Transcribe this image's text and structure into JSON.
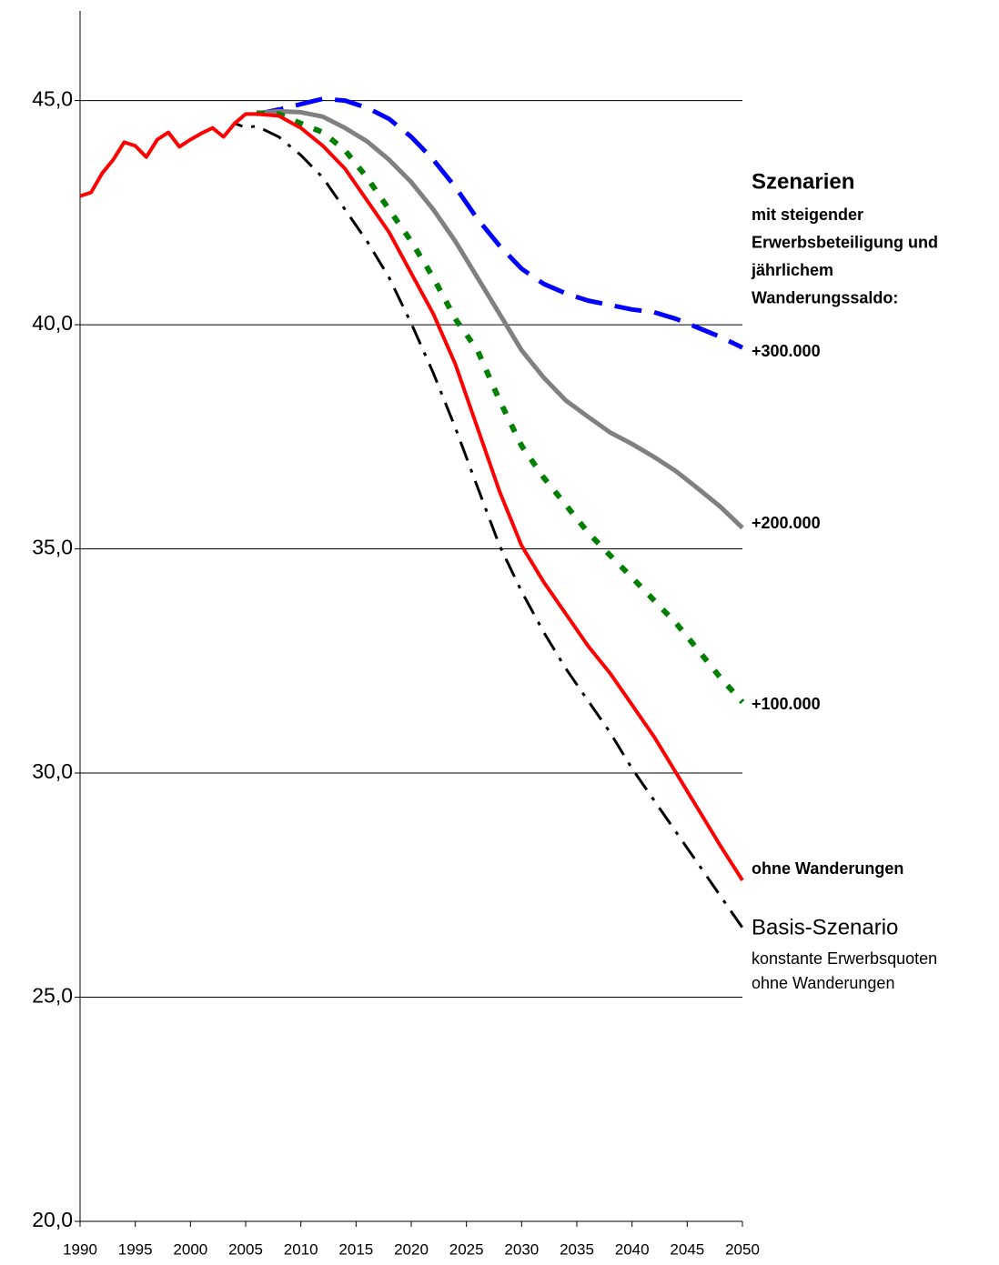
{
  "chart_data": {
    "type": "line",
    "x": [
      1990,
      1991,
      1992,
      1993,
      1994,
      1995,
      1996,
      1997,
      1998,
      1999,
      2000,
      2001,
      2002,
      2003,
      2004,
      2005,
      2006,
      2008,
      2010,
      2012,
      2014,
      2016,
      2018,
      2020,
      2022,
      2024,
      2026,
      2028,
      2030,
      2032,
      2034,
      2036,
      2038,
      2040,
      2042,
      2044,
      2046,
      2048,
      2050
    ],
    "xlim": [
      1990,
      2050
    ],
    "xticks": [
      1990,
      1995,
      2000,
      2005,
      2010,
      2015,
      2020,
      2025,
      2030,
      2035,
      2040,
      2045,
      2050
    ],
    "ylim": [
      20,
      47
    ],
    "yticks": [
      {
        "value": 20,
        "label": "20,0"
      },
      {
        "value": 25,
        "label": "25,0"
      },
      {
        "value": 30,
        "label": "30,0"
      },
      {
        "value": 35,
        "label": "35,0"
      },
      {
        "value": 40,
        "label": "40,0"
      },
      {
        "value": 45,
        "label": "45,0"
      }
    ],
    "grid": true,
    "annotation_title": "Szenarien",
    "annotations": [
      "mit steigender",
      "Erwerbsbeteiligung und",
      "jährlichem",
      "Wanderungssaldo:"
    ],
    "series": [
      {
        "name": "+300.000",
        "color": "#0000ff",
        "style": "dashed",
        "values": [
          null,
          null,
          null,
          null,
          null,
          null,
          null,
          null,
          null,
          null,
          null,
          null,
          null,
          null,
          null,
          null,
          44.7,
          44.8,
          44.92,
          45.04,
          45.0,
          44.84,
          44.59,
          44.19,
          43.68,
          43.07,
          42.36,
          41.76,
          41.25,
          40.91,
          40.7,
          40.54,
          40.44,
          40.34,
          40.28,
          40.13,
          39.93,
          39.73,
          39.49
        ]
      },
      {
        "name": "+200.000",
        "color": "#808080",
        "style": "solid",
        "values": [
          null,
          null,
          null,
          null,
          null,
          null,
          null,
          null,
          null,
          null,
          null,
          null,
          null,
          null,
          null,
          null,
          44.72,
          44.76,
          44.74,
          44.64,
          44.39,
          44.09,
          43.68,
          43.18,
          42.57,
          41.86,
          41.05,
          40.24,
          39.43,
          38.82,
          38.31,
          37.95,
          37.6,
          37.34,
          37.05,
          36.73,
          36.34,
          35.94,
          35.47
        ]
      },
      {
        "name": "+100.000",
        "color": "#008000",
        "style": "dotted",
        "values": [
          null,
          null,
          null,
          null,
          null,
          null,
          null,
          null,
          null,
          null,
          null,
          null,
          null,
          null,
          null,
          null,
          44.72,
          44.7,
          44.49,
          44.29,
          43.89,
          43.28,
          42.57,
          41.86,
          41.05,
          40.13,
          39.43,
          38.31,
          37.3,
          36.59,
          35.98,
          35.37,
          34.86,
          34.36,
          33.85,
          33.34,
          32.74,
          32.13,
          31.58
        ]
      },
      {
        "name": "Basis-Szenario",
        "notes": [
          "konstante Erwerbsquoten",
          "ohne Wanderungen"
        ],
        "color": "#000000",
        "style": "dashdot",
        "values": [
          42.87,
          42.95,
          43.38,
          43.68,
          44.07,
          43.99,
          43.74,
          44.13,
          44.29,
          43.97,
          44.13,
          44.27,
          44.39,
          44.19,
          44.49,
          44.4,
          44.43,
          44.19,
          43.78,
          43.28,
          42.57,
          41.86,
          41.05,
          40.03,
          38.92,
          37.7,
          36.38,
          35.07,
          34.05,
          33.14,
          32.33,
          31.62,
          30.91,
          30.1,
          29.39,
          28.68,
          27.97,
          27.26,
          26.55
        ]
      },
      {
        "name": "ohne Wanderungen",
        "color": "#ff0000",
        "style": "solid",
        "values": [
          42.87,
          42.95,
          43.38,
          43.68,
          44.07,
          43.99,
          43.74,
          44.13,
          44.29,
          43.97,
          44.13,
          44.27,
          44.39,
          44.19,
          44.49,
          44.7,
          44.7,
          44.66,
          44.39,
          43.99,
          43.48,
          42.77,
          42.06,
          41.15,
          40.24,
          39.12,
          37.7,
          36.28,
          35.07,
          34.26,
          33.55,
          32.84,
          32.23,
          31.52,
          30.81,
          30.0,
          29.19,
          28.38,
          27.61
        ]
      }
    ]
  }
}
